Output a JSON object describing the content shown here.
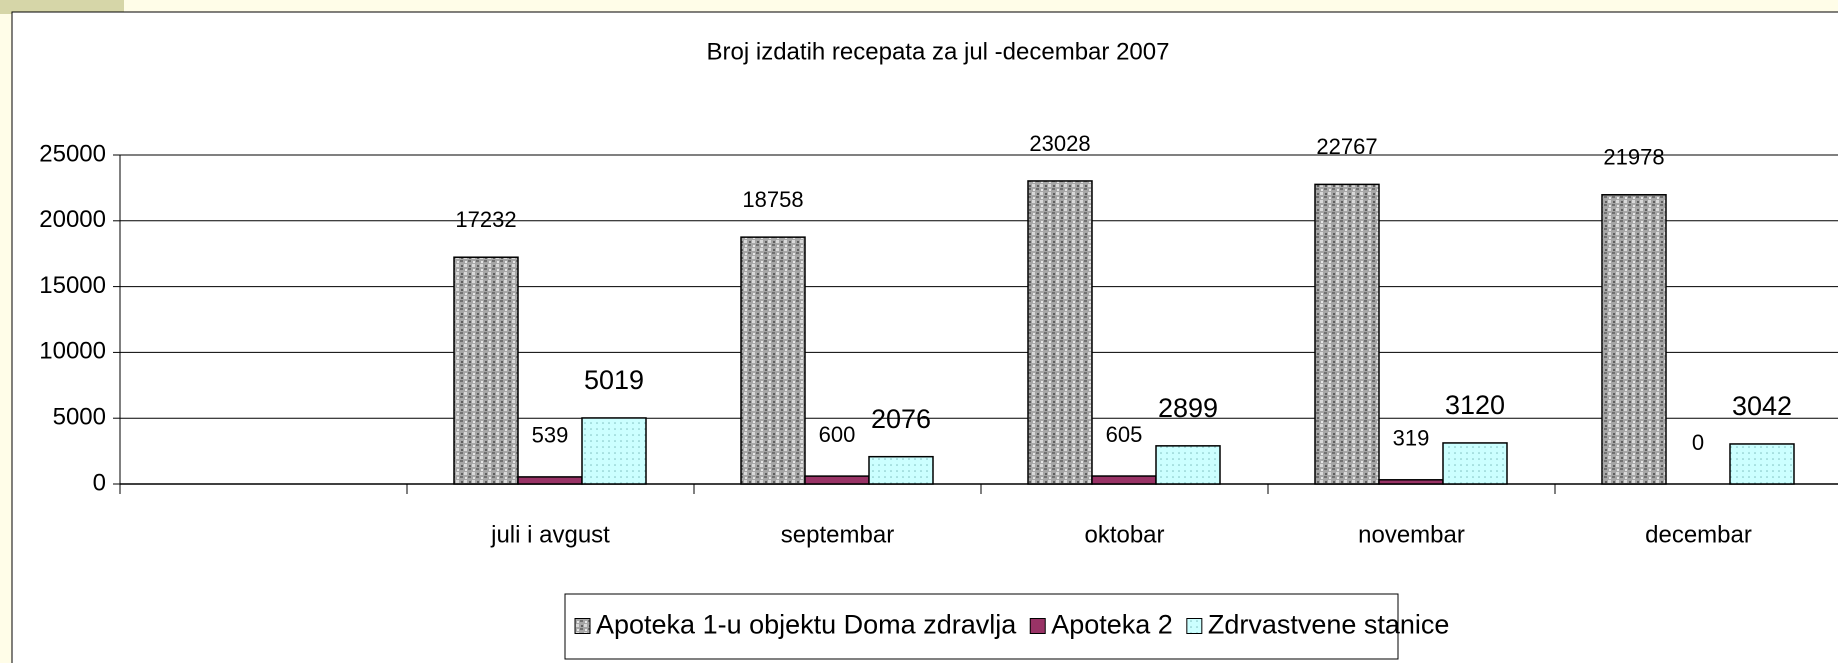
{
  "chart_data": {
    "type": "bar",
    "title": "Broj izdatih recepata za jul -decembar 2007",
    "categories": [
      null,
      "juli i avgust",
      "septembar",
      "oktobar",
      "novembar",
      "decembar"
    ],
    "series": [
      {
        "name": "Apoteka 1-u objektu Doma zdravlja",
        "color": "#a6a6a6",
        "values": [
          null,
          17232,
          18758,
          23028,
          22767,
          21978
        ]
      },
      {
        "name": "Apoteka 2",
        "color": "#993366",
        "values": [
          null,
          539,
          600,
          605,
          319,
          0
        ]
      },
      {
        "name": "Zdrvastvene stanice",
        "color": "#ccffff",
        "values": [
          null,
          5019,
          2076,
          2899,
          3120,
          3042
        ]
      }
    ],
    "ylim": [
      0,
      25000
    ],
    "yticks": [
      0,
      5000,
      10000,
      15000,
      20000,
      25000
    ],
    "grid": true,
    "legend": "bottom"
  }
}
